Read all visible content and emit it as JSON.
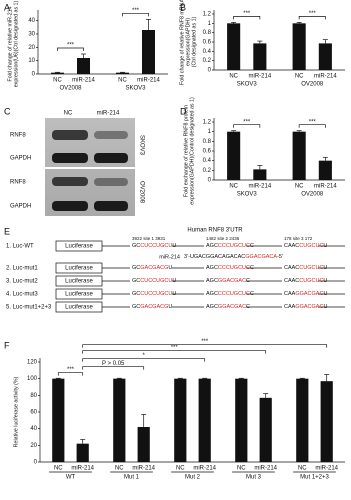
{
  "chart_data": [
    {
      "type": "bar",
      "panel": "A",
      "ylabel": [
        "Fold change of relative miR-214",
        "expression(U6)(Ctrl designated as 1)"
      ],
      "categories": [
        "NC",
        "miR-214",
        "NC",
        "miR-214"
      ],
      "groups": [
        "OV2008",
        "SKOV3"
      ],
      "values": [
        1,
        12,
        1,
        33
      ],
      "errors": [
        0.3,
        3,
        0.3,
        8
      ],
      "color": "#111111",
      "ylim": [
        0,
        45
      ],
      "yticks": [
        0,
        10,
        20,
        30,
        40
      ],
      "annotations": [
        "***",
        "***"
      ]
    },
    {
      "type": "bar",
      "panel": "B",
      "ylabel": [
        "Fold change of relative RNF8 mRNA",
        "expression(GAPDH)",
        "(Ctrl designated as 1)"
      ],
      "categories": [
        "NC",
        "miR-214",
        "NC",
        "miR-214"
      ],
      "groups": [
        "SKOV3",
        "OV2008"
      ],
      "values": [
        1,
        0.57,
        1,
        0.57
      ],
      "errors": [
        0.02,
        0.05,
        0.02,
        0.08
      ],
      "color": "#111111",
      "ylim": [
        0,
        1.2
      ],
      "yticks": [
        0,
        0.2,
        0.4,
        0.6,
        0.8,
        1,
        1.2
      ],
      "annotations": [
        "***",
        "***"
      ]
    },
    {
      "type": "bar",
      "panel": "D",
      "ylabel": [
        "Fold exchange of relative RNF8 protein",
        "expression(GAPDH)(Control designated as 1)"
      ],
      "categories": [
        "NC",
        "miR-214",
        "NC",
        "miR-214"
      ],
      "groups": [
        "SKOV3",
        "OV2008"
      ],
      "values": [
        1,
        0.22,
        1,
        0.4
      ],
      "errors": [
        0.02,
        0.08,
        0.02,
        0.07
      ],
      "color": "#111111",
      "ylim": [
        0,
        1.2
      ],
      "yticks": [
        0,
        0.2,
        0.4,
        0.6,
        0.8,
        1,
        1.2
      ],
      "annotations": [
        "***",
        "***"
      ]
    },
    {
      "type": "bar",
      "panel": "F",
      "ylabel": [
        "Relative luciferase activity (%)"
      ],
      "categories": [
        "NC",
        "miR-214",
        "NC",
        "miR-214",
        "NC",
        "miR-214",
        "NC",
        "miR-214",
        "NC",
        "miR-214"
      ],
      "groups": [
        "WT",
        "Mut 1",
        "Mut 2",
        "Mut 3",
        "Mut 1+2+3"
      ],
      "values": [
        100,
        22,
        100,
        42,
        100,
        100,
        100,
        77,
        100,
        97
      ],
      "errors": [
        0.5,
        5,
        0.5,
        15,
        0.5,
        0.5,
        0.5,
        5,
        0.5,
        8
      ],
      "color": "#111111",
      "ylim": [
        0,
        120
      ],
      "yticks": [
        0,
        20,
        40,
        60,
        80,
        100,
        120
      ],
      "annotations": [
        "***",
        "P > 0.05",
        "*",
        "***",
        "***"
      ]
    }
  ],
  "blot": {
    "panel": "C",
    "lanes": [
      "NC",
      "miR-214"
    ],
    "rows": [
      "RNF8",
      "GAPDH",
      "RNF8",
      "GAPDH"
    ],
    "cell_lines": [
      "SKOV3",
      "OV2008"
    ]
  },
  "diagram": {
    "panel": "E",
    "title": "Human RNF8  3'UTR",
    "site_labels": [
      "3922  site 1  3931",
      "1482  site 2  2436",
      "178  site 3  172"
    ],
    "luciferase": "Luciferase",
    "mir": {
      "label": "miR-214",
      "pre": "3'-UGACGGACAGACAC",
      "core": "GGACGACA",
      "post": "-5'"
    },
    "rows": [
      {
        "label": "1. Luc-WT",
        "sites": [
          {
            "pre": "GC",
            "core": "CUCCUGCU",
            "post": "U"
          },
          {
            "pre": "AGC",
            "core": "CCCUGCUC",
            "post": "C"
          },
          {
            "pre": "CAAC",
            "core": "CUGCUC",
            "post": "U"
          }
        ]
      },
      {
        "label": "2. Luc-mut1",
        "sites": [
          {
            "pre": "GC",
            "core": "GACGACG",
            "post": "U"
          },
          {
            "pre": "AGC",
            "core": "CCCUGCUC",
            "post": "C"
          },
          {
            "pre": "CAAC",
            "core": "CUGCUC",
            "post": "U"
          }
        ]
      },
      {
        "label": "3. Luc-mut2",
        "sites": [
          {
            "pre": "GC",
            "core": "CUCCUGCU",
            "post": "U"
          },
          {
            "pre": "AGC",
            "core": "GGACGAC",
            "post": "C"
          },
          {
            "pre": "CAAC",
            "core": "CUGCUC",
            "post": "U"
          }
        ]
      },
      {
        "label": "4. Luc-mut3",
        "sites": [
          {
            "pre": "GC",
            "core": "CUCCUGCU",
            "post": "U"
          },
          {
            "pre": "AGC",
            "core": "CCCUGCUC",
            "post": "C"
          },
          {
            "pre": "CAA",
            "core": "GGACGAC",
            "post": "U"
          }
        ]
      },
      {
        "label": "5. Luc-mut1+2+3",
        "sites": [
          {
            "pre": "GC",
            "core": "GACGACG",
            "post": "U"
          },
          {
            "pre": "AGC",
            "core": "GGACGAC",
            "post": "C"
          },
          {
            "pre": "CAA",
            "core": "GGACGAC",
            "post": "U"
          }
        ]
      }
    ]
  }
}
